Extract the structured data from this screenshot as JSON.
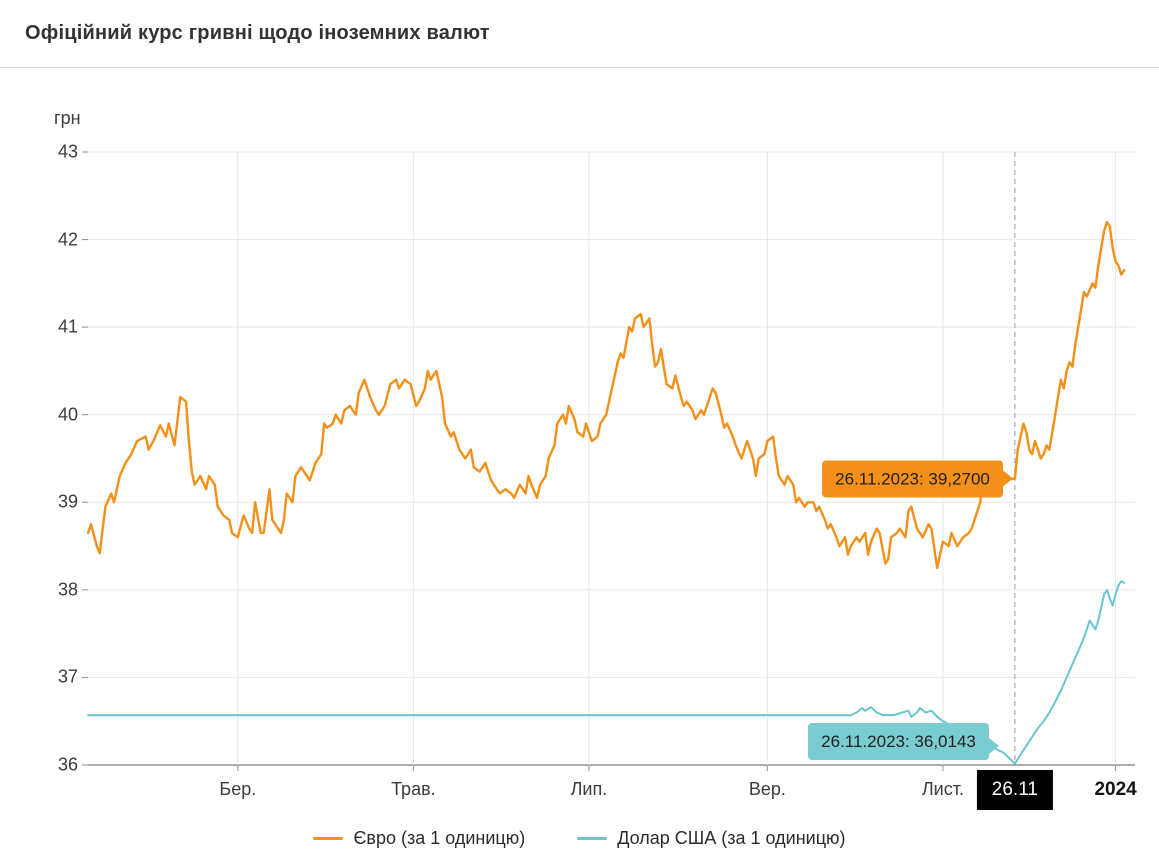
{
  "header": {
    "title": "Офіційний курс гривні щодо іноземних валют"
  },
  "chart_data": {
    "type": "line",
    "title": "Офіційний курс гривні щодо іноземних валют",
    "ylabel": "грн",
    "ylim": [
      36,
      43
    ],
    "yticks": [
      36,
      37,
      38,
      39,
      40,
      41,
      42,
      43
    ],
    "x_unit": "days since 2023-01-01",
    "grid": true,
    "legend_position": "bottom",
    "xticks": [
      {
        "label": "Бер.",
        "day": 59
      },
      {
        "label": "Трав.",
        "day": 120
      },
      {
        "label": "Лип.",
        "day": 181
      },
      {
        "label": "Вер.",
        "day": 243
      },
      {
        "label": "Лист.",
        "day": 304
      }
    ],
    "year_tick": {
      "label": "2024",
      "day": 364
    },
    "cursor": {
      "label": "26.11",
      "day": 329,
      "date": "26.11.2023"
    },
    "series": [
      {
        "name": "Євро (за 1 одиницю)",
        "color": "#f39019",
        "points": [
          [
            7,
            38.65
          ],
          [
            8,
            38.75
          ],
          [
            10,
            38.5
          ],
          [
            11,
            38.42
          ],
          [
            13,
            38.95
          ],
          [
            15,
            39.1
          ],
          [
            16,
            39.0
          ],
          [
            18,
            39.3
          ],
          [
            20,
            39.45
          ],
          [
            22,
            39.55
          ],
          [
            24,
            39.7
          ],
          [
            27,
            39.75
          ],
          [
            28,
            39.6
          ],
          [
            30,
            39.72
          ],
          [
            32,
            39.88
          ],
          [
            34,
            39.75
          ],
          [
            35,
            39.9
          ],
          [
            37,
            39.65
          ],
          [
            39,
            40.2
          ],
          [
            41,
            40.15
          ],
          [
            42,
            39.7
          ],
          [
            43,
            39.35
          ],
          [
            44,
            39.2
          ],
          [
            46,
            39.3
          ],
          [
            48,
            39.15
          ],
          [
            49,
            39.3
          ],
          [
            51,
            39.2
          ],
          [
            52,
            38.95
          ],
          [
            54,
            38.85
          ],
          [
            56,
            38.8
          ],
          [
            57,
            38.65
          ],
          [
            59,
            38.6
          ],
          [
            61,
            38.85
          ],
          [
            63,
            38.7
          ],
          [
            64,
            38.65
          ],
          [
            65,
            39.0
          ],
          [
            67,
            38.65
          ],
          [
            68,
            38.65
          ],
          [
            70,
            39.15
          ],
          [
            71,
            38.8
          ],
          [
            72,
            38.75
          ],
          [
            74,
            38.65
          ],
          [
            75,
            38.8
          ],
          [
            76,
            39.1
          ],
          [
            78,
            39.0
          ],
          [
            79,
            39.3
          ],
          [
            81,
            39.4
          ],
          [
            82,
            39.35
          ],
          [
            84,
            39.25
          ],
          [
            86,
            39.45
          ],
          [
            88,
            39.55
          ],
          [
            89,
            39.9
          ],
          [
            90,
            39.85
          ],
          [
            92,
            39.9
          ],
          [
            93,
            40.0
          ],
          [
            95,
            39.9
          ],
          [
            96,
            40.05
          ],
          [
            98,
            40.1
          ],
          [
            100,
            40.0
          ],
          [
            101,
            40.25
          ],
          [
            103,
            40.4
          ],
          [
            105,
            40.2
          ],
          [
            107,
            40.05
          ],
          [
            108,
            40.0
          ],
          [
            110,
            40.1
          ],
          [
            112,
            40.35
          ],
          [
            114,
            40.4
          ],
          [
            115,
            40.3
          ],
          [
            117,
            40.4
          ],
          [
            119,
            40.35
          ],
          [
            121,
            40.1
          ],
          [
            122,
            40.15
          ],
          [
            124,
            40.3
          ],
          [
            125,
            40.5
          ],
          [
            126,
            40.4
          ],
          [
            128,
            40.5
          ],
          [
            130,
            40.2
          ],
          [
            131,
            39.9
          ],
          [
            133,
            39.75
          ],
          [
            134,
            39.8
          ],
          [
            136,
            39.6
          ],
          [
            137,
            39.55
          ],
          [
            138,
            39.5
          ],
          [
            140,
            39.6
          ],
          [
            141,
            39.4
          ],
          [
            143,
            39.35
          ],
          [
            145,
            39.45
          ],
          [
            147,
            39.25
          ],
          [
            148,
            39.2
          ],
          [
            150,
            39.1
          ],
          [
            152,
            39.15
          ],
          [
            154,
            39.1
          ],
          [
            155,
            39.05
          ],
          [
            157,
            39.2
          ],
          [
            159,
            39.1
          ],
          [
            160,
            39.3
          ],
          [
            161,
            39.2
          ],
          [
            163,
            39.05
          ],
          [
            164,
            39.2
          ],
          [
            166,
            39.3
          ],
          [
            167,
            39.5
          ],
          [
            169,
            39.65
          ],
          [
            170,
            39.9
          ],
          [
            172,
            40.0
          ],
          [
            173,
            39.9
          ],
          [
            174,
            40.1
          ],
          [
            176,
            39.95
          ],
          [
            177,
            39.8
          ],
          [
            179,
            39.75
          ],
          [
            180,
            39.9
          ],
          [
            181,
            39.8
          ],
          [
            182,
            39.7
          ],
          [
            184,
            39.75
          ],
          [
            185,
            39.9
          ],
          [
            187,
            40.0
          ],
          [
            189,
            40.3
          ],
          [
            191,
            40.6
          ],
          [
            192,
            40.7
          ],
          [
            193,
            40.65
          ],
          [
            195,
            41.0
          ],
          [
            196,
            40.95
          ],
          [
            197,
            41.1
          ],
          [
            199,
            41.15
          ],
          [
            200,
            41.0
          ],
          [
            202,
            41.1
          ],
          [
            203,
            40.8
          ],
          [
            204,
            40.55
          ],
          [
            205,
            40.6
          ],
          [
            206,
            40.75
          ],
          [
            207,
            40.55
          ],
          [
            208,
            40.35
          ],
          [
            210,
            40.3
          ],
          [
            211,
            40.45
          ],
          [
            213,
            40.2
          ],
          [
            214,
            40.1
          ],
          [
            215,
            40.15
          ],
          [
            217,
            40.05
          ],
          [
            218,
            39.95
          ],
          [
            220,
            40.05
          ],
          [
            221,
            40.0
          ],
          [
            222,
            40.1
          ],
          [
            224,
            40.3
          ],
          [
            225,
            40.25
          ],
          [
            227,
            40.0
          ],
          [
            228,
            39.85
          ],
          [
            229,
            39.9
          ],
          [
            231,
            39.75
          ],
          [
            232,
            39.65
          ],
          [
            234,
            39.5
          ],
          [
            235,
            39.6
          ],
          [
            236,
            39.7
          ],
          [
            238,
            39.5
          ],
          [
            239,
            39.3
          ],
          [
            240,
            39.5
          ],
          [
            242,
            39.55
          ],
          [
            243,
            39.7
          ],
          [
            245,
            39.75
          ],
          [
            246,
            39.5
          ],
          [
            247,
            39.3
          ],
          [
            249,
            39.2
          ],
          [
            250,
            39.3
          ],
          [
            252,
            39.2
          ],
          [
            253,
            39.0
          ],
          [
            254,
            39.05
          ],
          [
            256,
            38.95
          ],
          [
            257,
            39.0
          ],
          [
            259,
            39.0
          ],
          [
            260,
            38.9
          ],
          [
            261,
            38.95
          ],
          [
            263,
            38.8
          ],
          [
            264,
            38.7
          ],
          [
            265,
            38.75
          ],
          [
            267,
            38.6
          ],
          [
            268,
            38.5
          ],
          [
            270,
            38.6
          ],
          [
            271,
            38.4
          ],
          [
            272,
            38.5
          ],
          [
            274,
            38.6
          ],
          [
            275,
            38.55
          ],
          [
            277,
            38.65
          ],
          [
            278,
            38.4
          ],
          [
            279,
            38.55
          ],
          [
            281,
            38.7
          ],
          [
            282,
            38.65
          ],
          [
            284,
            38.3
          ],
          [
            285,
            38.35
          ],
          [
            286,
            38.6
          ],
          [
            288,
            38.65
          ],
          [
            289,
            38.7
          ],
          [
            291,
            38.6
          ],
          [
            292,
            38.9
          ],
          [
            293,
            38.95
          ],
          [
            295,
            38.7
          ],
          [
            296,
            38.65
          ],
          [
            297,
            38.6
          ],
          [
            299,
            38.75
          ],
          [
            300,
            38.7
          ],
          [
            302,
            38.25
          ],
          [
            303,
            38.4
          ],
          [
            304,
            38.55
          ],
          [
            306,
            38.5
          ],
          [
            307,
            38.65
          ],
          [
            309,
            38.5
          ],
          [
            310,
            38.55
          ],
          [
            311,
            38.6
          ],
          [
            313,
            38.65
          ],
          [
            314,
            38.7
          ],
          [
            316,
            38.9
          ],
          [
            317,
            39.0
          ],
          [
            318,
            39.3
          ],
          [
            320,
            39.25
          ],
          [
            321,
            39.3
          ],
          [
            322,
            39.28
          ],
          [
            324,
            39.3
          ],
          [
            326,
            39.28
          ],
          [
            327,
            39.26
          ],
          [
            329,
            39.27
          ],
          [
            330,
            39.6
          ],
          [
            332,
            39.9
          ],
          [
            333,
            39.8
          ],
          [
            334,
            39.6
          ],
          [
            335,
            39.55
          ],
          [
            336,
            39.7
          ],
          [
            337,
            39.6
          ],
          [
            338,
            39.5
          ],
          [
            339,
            39.55
          ],
          [
            340,
            39.65
          ],
          [
            341,
            39.6
          ],
          [
            342,
            39.8
          ],
          [
            343,
            40.0
          ],
          [
            344,
            40.2
          ],
          [
            345,
            40.4
          ],
          [
            346,
            40.3
          ],
          [
            347,
            40.5
          ],
          [
            348,
            40.6
          ],
          [
            349,
            40.55
          ],
          [
            350,
            40.8
          ],
          [
            351,
            41.0
          ],
          [
            352,
            41.2
          ],
          [
            353,
            41.4
          ],
          [
            354,
            41.35
          ],
          [
            356,
            41.5
          ],
          [
            357,
            41.45
          ],
          [
            358,
            41.7
          ],
          [
            359,
            41.9
          ],
          [
            360,
            42.1
          ],
          [
            361,
            42.2
          ],
          [
            362,
            42.15
          ],
          [
            363,
            41.9
          ],
          [
            364,
            41.75
          ],
          [
            365,
            41.7
          ],
          [
            366,
            41.6
          ],
          [
            367,
            41.65
          ]
        ]
      },
      {
        "name": "Долар США (за 1 одиницю)",
        "color": "#68c6cc",
        "points": [
          [
            7,
            36.5686
          ],
          [
            150,
            36.5686
          ],
          [
            272,
            36.5686
          ],
          [
            274,
            36.6
          ],
          [
            276,
            36.65
          ],
          [
            277,
            36.62
          ],
          [
            279,
            36.66
          ],
          [
            281,
            36.6
          ],
          [
            283,
            36.57
          ],
          [
            287,
            36.57
          ],
          [
            290,
            36.6
          ],
          [
            292,
            36.62
          ],
          [
            293,
            36.55
          ],
          [
            295,
            36.6
          ],
          [
            296,
            36.65
          ],
          [
            298,
            36.6
          ],
          [
            300,
            36.62
          ],
          [
            302,
            36.55
          ],
          [
            304,
            36.5
          ],
          [
            307,
            36.45
          ],
          [
            310,
            36.4
          ],
          [
            313,
            36.35
          ],
          [
            316,
            36.3
          ],
          [
            319,
            36.24
          ],
          [
            322,
            36.19
          ],
          [
            325,
            36.14
          ],
          [
            327,
            36.08
          ],
          [
            329,
            36.0143
          ],
          [
            331,
            36.12
          ],
          [
            333,
            36.22
          ],
          [
            335,
            36.32
          ],
          [
            337,
            36.42
          ],
          [
            339,
            36.5
          ],
          [
            341,
            36.6
          ],
          [
            343,
            36.72
          ],
          [
            345,
            36.85
          ],
          [
            347,
            37.0
          ],
          [
            349,
            37.15
          ],
          [
            351,
            37.3
          ],
          [
            353,
            37.45
          ],
          [
            354,
            37.55
          ],
          [
            355,
            37.65
          ],
          [
            356,
            37.6
          ],
          [
            357,
            37.55
          ],
          [
            358,
            37.65
          ],
          [
            359,
            37.8
          ],
          [
            360,
            37.95
          ],
          [
            361,
            38.0
          ],
          [
            362,
            37.9
          ],
          [
            363,
            37.82
          ],
          [
            364,
            37.95
          ],
          [
            365,
            38.05
          ],
          [
            366,
            38.1
          ],
          [
            367,
            38.08
          ]
        ]
      }
    ],
    "tooltips": [
      {
        "series": "euro",
        "text": "26.11.2023: 39,2700",
        "day": 329,
        "value": 39.27,
        "color": "#f39019"
      },
      {
        "series": "usd",
        "text": "26.11.2023: 36,0143",
        "day": 329,
        "value": 36.0143,
        "color": "#79cdd2"
      }
    ]
  },
  "legend": {
    "items": [
      {
        "label": "Євро (за 1 одиницю)",
        "color": "#f39019"
      },
      {
        "label": "Долар США (за 1 одиницю)",
        "color": "#68c6cc"
      }
    ]
  }
}
